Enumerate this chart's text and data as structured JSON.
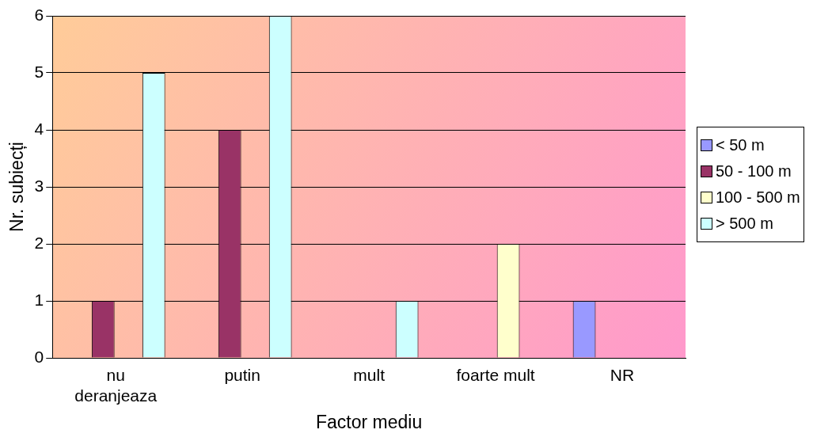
{
  "chart_data": {
    "type": "bar",
    "xlabel": "Factor mediu",
    "ylabel": "Nr. subiecți",
    "categories": [
      "nu deranjeaza",
      "putin",
      "mult",
      "foarte mult",
      "NR"
    ],
    "series": [
      {
        "name": "< 50 m",
        "color": "#9999ff",
        "values": [
          0,
          0,
          0,
          0,
          1
        ]
      },
      {
        "name": "50 - 100 m",
        "color": "#993366",
        "values": [
          1,
          4,
          0,
          0,
          0
        ]
      },
      {
        "name": "100 - 500 m",
        "color": "#ffffcc",
        "values": [
          0,
          0,
          0,
          2,
          0
        ]
      },
      {
        "name": "> 500 m",
        "color": "#ccffff",
        "values": [
          5,
          6,
          1,
          0,
          0
        ]
      }
    ],
    "ylim": [
      0,
      6
    ],
    "yticks": [
      0,
      1,
      2,
      3,
      4,
      5,
      6
    ],
    "grid": "y",
    "legend": "right"
  }
}
